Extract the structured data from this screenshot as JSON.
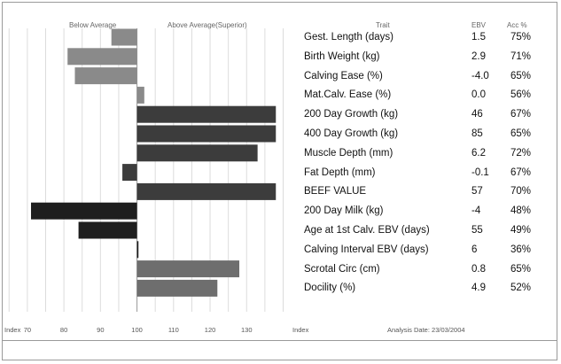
{
  "headers": {
    "below": "Below Average",
    "above": "Above Average(Superior)",
    "trait": "Trait",
    "ebv": "EBV",
    "acc": "Acc %"
  },
  "chart_data": {
    "type": "bar",
    "orientation": "horizontal",
    "baseline": 100,
    "xlim": [
      63,
      144
    ],
    "xticks": [
      70,
      80,
      90,
      100,
      110,
      120,
      130
    ],
    "xlabel_left": "Index",
    "xlabel_right": "Index",
    "categories": [
      "Gest. Length (days)",
      "Birth Weight (kg)",
      "Calving Ease (%)",
      "Mat.Calv. Ease (%)",
      "200 Day Growth (kg)",
      "400 Day Growth (kg)",
      "Muscle Depth (mm)",
      "Fat Depth (mm)",
      "BEEF VALUE",
      "200 Day Milk (kg)",
      "Age at 1st Calv. EBV (days)",
      "Calving Interval EBV (days)",
      "Scrotal Circ (cm)",
      "Docility (%)"
    ],
    "values": [
      93,
      81,
      83,
      102,
      138,
      138,
      133,
      96,
      138,
      71,
      84,
      100.4,
      128,
      122
    ],
    "ebv": [
      "1.5",
      "2.9",
      "-4.0",
      "0.0",
      "46",
      "85",
      "6.2",
      "-0.1",
      "57",
      "-4",
      "55",
      "6",
      "0.8",
      "4.9"
    ],
    "acc": [
      "75%",
      "71%",
      "65%",
      "56%",
      "67%",
      "65%",
      "72%",
      "67%",
      "70%",
      "48%",
      "49%",
      "36%",
      "65%",
      "52%"
    ],
    "colors": [
      "#8a8a8a",
      "#8a8a8a",
      "#8a8a8a",
      "#8a8a8a",
      "#3c3c3c",
      "#3c3c3c",
      "#3c3c3c",
      "#3c3c3c",
      "#3c3c3c",
      "#1e1e1e",
      "#1e1e1e",
      "#1e1e1e",
      "#6e6e6e",
      "#6e6e6e"
    ],
    "grid": true
  },
  "analysis_date": "Analysis Date: 23/03/2004"
}
